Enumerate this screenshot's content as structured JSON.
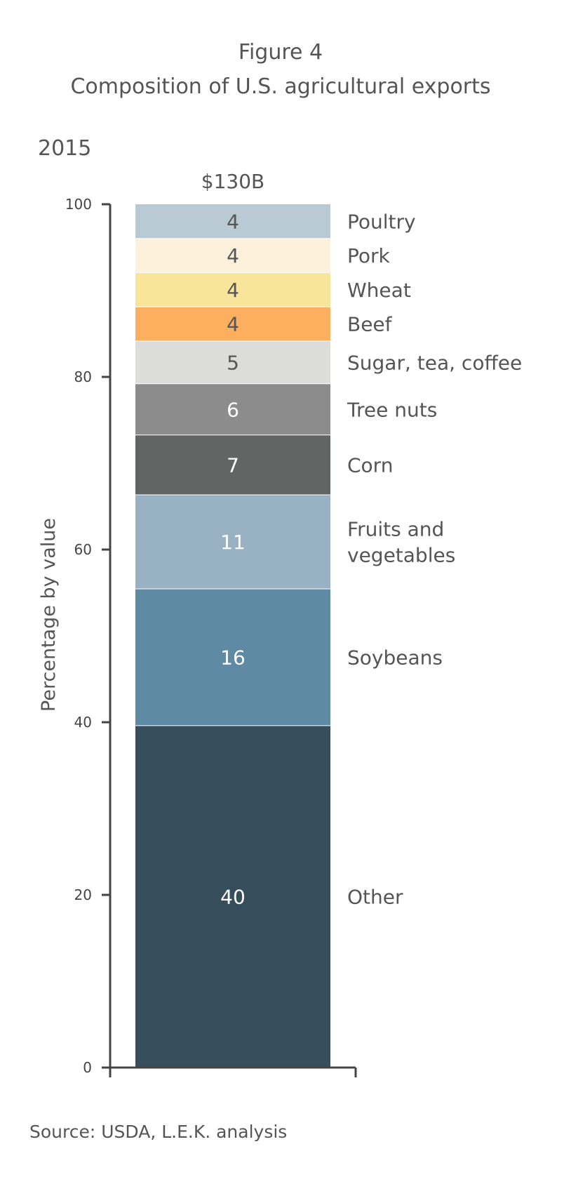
{
  "figure_label": "Figure 4",
  "title": "Composition of U.S. agricultural exports",
  "year": "2015",
  "source": "Source: USDA, L.E.K. analysis",
  "chart_data": {
    "type": "bar",
    "stacked": true,
    "title": "Composition of U.S. agricultural exports",
    "xlabel": "",
    "ylabel": "Percentage by value",
    "ylim": [
      0,
      100
    ],
    "yticks": [
      0,
      20,
      40,
      60,
      80,
      100
    ],
    "categories": [
      "2015"
    ],
    "bar_total_label": "$130B",
    "grid": false,
    "series": [
      {
        "name": "Other",
        "values": [
          40
        ],
        "label": "40",
        "color": "#364e5b",
        "text_color": "#ffffff"
      },
      {
        "name": "Soybeans",
        "values": [
          16
        ],
        "label": "16",
        "color": "#5e8aa3",
        "text_color": "#ffffff"
      },
      {
        "name": "Fruits and vegetables",
        "label_lines": [
          "Fruits and",
          "vegetables"
        ],
        "values": [
          11
        ],
        "label": "11",
        "color": "#98b2c3",
        "text_color": "#ffffff"
      },
      {
        "name": "Corn",
        "values": [
          7
        ],
        "label": "7",
        "color": "#636565",
        "text_color": "#ffffff"
      },
      {
        "name": "Tree nuts",
        "values": [
          6
        ],
        "label": "6",
        "color": "#8c8c8c",
        "text_color": "#ffffff"
      },
      {
        "name": "Sugar, tea, coffee",
        "values": [
          5
        ],
        "label": "5",
        "color": "#dcdcdb",
        "text_color": "#555555"
      },
      {
        "name": "Beef",
        "values": [
          4
        ],
        "label": "4",
        "color": "#fcb05f",
        "text_color": "#555555"
      },
      {
        "name": "Wheat",
        "values": [
          4
        ],
        "label": "4",
        "color": "#f9e59a",
        "text_color": "#555555"
      },
      {
        "name": "Pork",
        "values": [
          4
        ],
        "label": "4",
        "color": "#fdf1dc",
        "text_color": "#555555"
      },
      {
        "name": "Poultry",
        "values": [
          4
        ],
        "label": "4",
        "color": "#b9cad5",
        "text_color": "#555555"
      }
    ]
  }
}
